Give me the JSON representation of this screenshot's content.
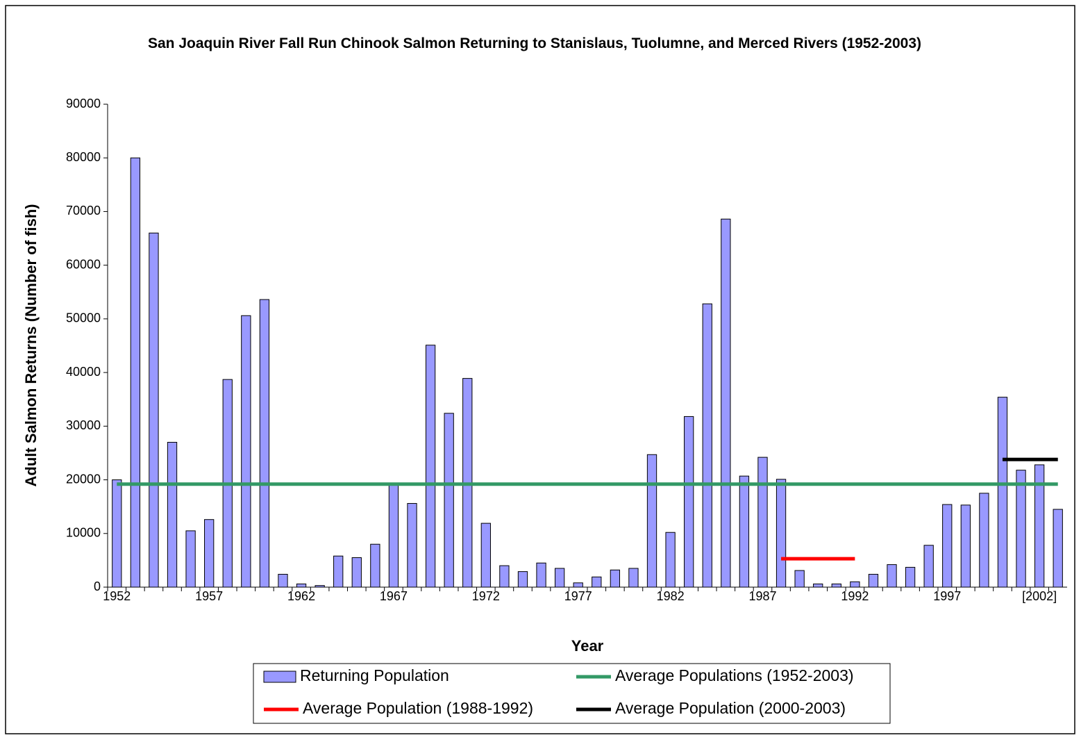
{
  "chart_data": {
    "type": "bar",
    "title": "San Joaquin River Fall Run Chinook Salmon Returning to Stanislaus, Tuolumne, and Merced Rivers (1952-2003)",
    "x_label": "Year",
    "y_label": "Adult Salmon Returns (Number of fish)",
    "categories": [
      "1952",
      null,
      null,
      null,
      null,
      "1957",
      null,
      null,
      null,
      null,
      "1962",
      null,
      null,
      null,
      null,
      "1967",
      null,
      null,
      null,
      null,
      "1972",
      null,
      null,
      null,
      null,
      "1977",
      null,
      null,
      null,
      null,
      "1982",
      null,
      null,
      null,
      null,
      "1987",
      null,
      null,
      null,
      null,
      "1992",
      null,
      null,
      null,
      null,
      "1997",
      null,
      null,
      null,
      null,
      "[2002]",
      null
    ],
    "ylim": [
      0,
      90000
    ],
    "yticks": [
      0,
      10000,
      20000,
      30000,
      40000,
      50000,
      60000,
      70000,
      80000,
      90000
    ],
    "series": [
      {
        "name": "Returning Population",
        "type": "bar",
        "color": "#9999ff",
        "values": [
          20000,
          80000,
          66000,
          27000,
          10500,
          12600,
          38700,
          50600,
          53600,
          2400,
          600,
          300,
          5800,
          5500,
          8000,
          19200,
          15600,
          45100,
          32400,
          38900,
          11900,
          4000,
          2900,
          4500,
          3500,
          800,
          1900,
          3200,
          3500,
          24700,
          10200,
          31800,
          52800,
          68600,
          20700,
          24200,
          20100,
          3100,
          600,
          600,
          1000,
          2400,
          4200,
          3700,
          7800,
          15400,
          15300,
          17500,
          35400,
          21800,
          22800,
          14500
        ]
      },
      {
        "name": "Average Populations (1952-2003)",
        "type": "line",
        "color": "#339966",
        "values": [
          19200,
          19200,
          19200,
          19200,
          19200,
          19200,
          19200,
          19200,
          19200,
          19200,
          19200,
          19200,
          19200,
          19200,
          19200,
          19200,
          19200,
          19200,
          19200,
          19200,
          19200,
          19200,
          19200,
          19200,
          19200,
          19200,
          19200,
          19200,
          19200,
          19200,
          19200,
          19200,
          19200,
          19200,
          19200,
          19200,
          19200,
          19200,
          19200,
          19200,
          19200,
          19200,
          19200,
          19200,
          19200,
          19200,
          19200,
          19200,
          19200,
          19200,
          19200,
          19200
        ]
      },
      {
        "name": "Average Population (1988-1992)",
        "type": "line",
        "color": "#ff0000",
        "values": [
          null,
          null,
          null,
          null,
          null,
          null,
          null,
          null,
          null,
          null,
          null,
          null,
          null,
          null,
          null,
          null,
          null,
          null,
          null,
          null,
          null,
          null,
          null,
          null,
          null,
          null,
          null,
          null,
          null,
          null,
          null,
          null,
          null,
          null,
          null,
          null,
          5300,
          5300,
          5300,
          5300,
          5300,
          null,
          null,
          null,
          null,
          null,
          null,
          null,
          null,
          null,
          null,
          null
        ]
      },
      {
        "name": "Average Population (2000-2003)",
        "type": "line",
        "color": "#000000",
        "values": [
          null,
          null,
          null,
          null,
          null,
          null,
          null,
          null,
          null,
          null,
          null,
          null,
          null,
          null,
          null,
          null,
          null,
          null,
          null,
          null,
          null,
          null,
          null,
          null,
          null,
          null,
          null,
          null,
          null,
          null,
          null,
          null,
          null,
          null,
          null,
          null,
          null,
          null,
          null,
          null,
          null,
          null,
          null,
          null,
          null,
          null,
          null,
          null,
          23800,
          23800,
          23800,
          23800
        ]
      }
    ]
  }
}
